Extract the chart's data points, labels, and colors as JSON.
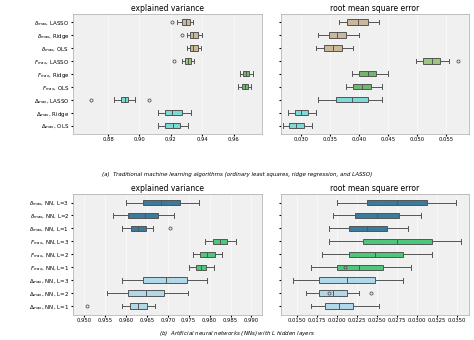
{
  "top_left": {
    "title": "explained variance",
    "xlim": [
      0.858,
      0.978
    ],
    "xticks": [
      0.88,
      0.9,
      0.92,
      0.94,
      0.96
    ],
    "yticks": [
      "$\\delta_{max}$, LASSO",
      "$\\delta_{max}$, Ridge",
      "$\\delta_{max}$, OLS",
      "$F_{max}$, LASSO",
      "$F_{max}$, Ridge",
      "$F_{max}$, OLS",
      "$\\Delta_{max}$, LASSO",
      "$\\Delta_{max}$, Ridge",
      "$\\Delta_{max}$, OLS"
    ],
    "boxes": [
      {
        "med": 0.9295,
        "q1": 0.927,
        "q3": 0.932,
        "whislo": 0.924,
        "whishi": 0.934,
        "fliers": [
          0.921
        ],
        "color": "#c9b99a"
      },
      {
        "med": 0.934,
        "q1": 0.932,
        "q3": 0.937,
        "whislo": 0.93,
        "whishi": 0.94,
        "fliers": [
          0.927
        ],
        "color": "#c9b99a"
      },
      {
        "med": 0.934,
        "q1": 0.932,
        "q3": 0.937,
        "whislo": 0.93,
        "whishi": 0.939,
        "fliers": [],
        "color": "#c9b99a"
      },
      {
        "med": 0.931,
        "q1": 0.929,
        "q3": 0.933,
        "whislo": 0.927,
        "whishi": 0.935,
        "fliers": [
          0.922
        ],
        "color": "#9bc87a"
      },
      {
        "med": 0.968,
        "q1": 0.966,
        "q3": 0.97,
        "whislo": 0.964,
        "whishi": 0.972,
        "fliers": [],
        "color": "#6db86d"
      },
      {
        "med": 0.967,
        "q1": 0.965,
        "q3": 0.969,
        "whislo": 0.963,
        "whishi": 0.971,
        "fliers": [],
        "color": "#6db86d"
      },
      {
        "med": 0.8905,
        "q1": 0.888,
        "q3": 0.893,
        "whislo": 0.884,
        "whishi": 0.897,
        "fliers": [
          0.869,
          0.906
        ],
        "color": "#7adad5"
      },
      {
        "med": 0.921,
        "q1": 0.916,
        "q3": 0.927,
        "whislo": 0.912,
        "whishi": 0.933,
        "fliers": [],
        "color": "#7adad5"
      },
      {
        "med": 0.9215,
        "q1": 0.916,
        "q3": 0.926,
        "whislo": 0.912,
        "whishi": 0.931,
        "fliers": [],
        "color": "#7adad5"
      }
    ]
  },
  "top_right": {
    "title": "root mean square error",
    "xlim": [
      0.0265,
      0.059
    ],
    "xticks": [
      0.03,
      0.035,
      0.04,
      0.045,
      0.05,
      0.055
    ],
    "yticks": [
      "",
      "",
      "",
      "",
      "",
      "",
      "",
      "",
      ""
    ],
    "boxes": [
      {
        "med": 0.0398,
        "q1": 0.038,
        "q3": 0.0415,
        "whislo": 0.0365,
        "whishi": 0.0435,
        "fliers": [],
        "color": "#c9b99a"
      },
      {
        "med": 0.0362,
        "q1": 0.0348,
        "q3": 0.0378,
        "whislo": 0.033,
        "whishi": 0.04,
        "fliers": [],
        "color": "#c9b99a"
      },
      {
        "med": 0.0355,
        "q1": 0.034,
        "q3": 0.037,
        "whislo": 0.0325,
        "whishi": 0.039,
        "fliers": [],
        "color": "#c9b99a"
      },
      {
        "med": 0.0525,
        "q1": 0.051,
        "q3": 0.054,
        "whislo": 0.0498,
        "whishi": 0.0555,
        "fliers": [
          0.057
        ],
        "color": "#9bc87a"
      },
      {
        "med": 0.0415,
        "q1": 0.04,
        "q3": 0.043,
        "whislo": 0.0388,
        "whishi": 0.045,
        "fliers": [],
        "color": "#6db86d"
      },
      {
        "med": 0.0405,
        "q1": 0.039,
        "q3": 0.042,
        "whislo": 0.0378,
        "whishi": 0.044,
        "fliers": [],
        "color": "#6db86d"
      },
      {
        "med": 0.0388,
        "q1": 0.036,
        "q3": 0.0415,
        "whislo": 0.033,
        "whishi": 0.044,
        "fliers": [],
        "color": "#7adad5"
      },
      {
        "med": 0.03,
        "q1": 0.029,
        "q3": 0.0312,
        "whislo": 0.0278,
        "whishi": 0.0325,
        "fliers": [],
        "color": "#7adad5"
      },
      {
        "med": 0.0292,
        "q1": 0.028,
        "q3": 0.0305,
        "whislo": 0.0268,
        "whishi": 0.0318,
        "fliers": [],
        "color": "#7adad5"
      }
    ]
  },
  "bot_left": {
    "title": "explained variance",
    "xlim": [
      0.9475,
      0.9925
    ],
    "xticks": [
      0.95,
      0.955,
      0.96,
      0.965,
      0.97,
      0.975,
      0.98,
      0.985,
      0.99
    ],
    "yticks": [
      "$\\delta_{max}$, NN, L=3",
      "$\\delta_{max}$, NN, L=2",
      "$\\delta_{max}$, NN, L=1",
      "$F_{max}$, NN, L=3",
      "$F_{max}$, NN, L=2",
      "$F_{max}$, NN, L=1",
      "$\\Delta_{max}$, NN, L=3",
      "$\\Delta_{max}$, NN, L=2",
      "$\\Delta_{max}$, NN, L=1"
    ],
    "boxes": [
      {
        "med": 0.9685,
        "q1": 0.964,
        "q3": 0.973,
        "whislo": 0.96,
        "whishi": 0.9775,
        "fliers": [],
        "color": "#3a7a9c"
      },
      {
        "med": 0.9645,
        "q1": 0.9605,
        "q3": 0.9678,
        "whislo": 0.957,
        "whishi": 0.9715,
        "fliers": [],
        "color": "#3a7a9c"
      },
      {
        "med": 0.963,
        "q1": 0.9612,
        "q3": 0.9648,
        "whislo": 0.9592,
        "whishi": 0.9665,
        "fliers": [
          0.9705
        ],
        "color": "#3a7a9c"
      },
      {
        "med": 0.9825,
        "q1": 0.9808,
        "q3": 0.9842,
        "whislo": 0.979,
        "whishi": 0.9862,
        "fliers": [],
        "color": "#4dc87a"
      },
      {
        "med": 0.9795,
        "q1": 0.9778,
        "q3": 0.9812,
        "whislo": 0.976,
        "whishi": 0.983,
        "fliers": [],
        "color": "#4dc87a"
      },
      {
        "med": 0.978,
        "q1": 0.9768,
        "q3": 0.9792,
        "whislo": 0.975,
        "whishi": 0.981,
        "fliers": [],
        "color": "#4dc87a"
      },
      {
        "med": 0.9695,
        "q1": 0.964,
        "q3": 0.9745,
        "whislo": 0.959,
        "whishi": 0.9795,
        "fliers": [],
        "color": "#b0d8e8"
      },
      {
        "med": 0.9648,
        "q1": 0.9605,
        "q3": 0.9692,
        "whislo": 0.9555,
        "whishi": 0.9748,
        "fliers": [],
        "color": "#b0d8e8"
      },
      {
        "med": 0.963,
        "q1": 0.961,
        "q3": 0.965,
        "whislo": 0.959,
        "whishi": 0.967,
        "fliers": [
          0.9508
        ],
        "color": "#b0d8e8"
      }
    ]
  },
  "bot_right": {
    "title": "root mean square error",
    "xlim": [
      0.013,
      0.0365
    ],
    "xticks": [
      0.015,
      0.0175,
      0.02,
      0.0225,
      0.025,
      0.0275,
      0.03,
      0.0325,
      0.035
    ],
    "yticks": [
      "",
      "",
      "",
      "",
      "",
      "",
      "",
      "",
      ""
    ],
    "boxes": [
      {
        "med": 0.0275,
        "q1": 0.0238,
        "q3": 0.0312,
        "whislo": 0.02,
        "whishi": 0.0348,
        "fliers": [],
        "color": "#3a7a9c"
      },
      {
        "med": 0.025,
        "q1": 0.0222,
        "q3": 0.0278,
        "whislo": 0.0195,
        "whishi": 0.0305,
        "fliers": [],
        "color": "#3a7a9c"
      },
      {
        "med": 0.0238,
        "q1": 0.0215,
        "q3": 0.0262,
        "whislo": 0.019,
        "whishi": 0.0288,
        "fliers": [],
        "color": "#3a7a9c"
      },
      {
        "med": 0.0275,
        "q1": 0.0232,
        "q3": 0.0318,
        "whislo": 0.019,
        "whishi": 0.0355,
        "fliers": [],
        "color": "#4dc87a"
      },
      {
        "med": 0.0248,
        "q1": 0.0215,
        "q3": 0.0282,
        "whislo": 0.0182,
        "whishi": 0.0318,
        "fliers": [],
        "color": "#4dc87a"
      },
      {
        "med": 0.0228,
        "q1": 0.02,
        "q3": 0.0258,
        "whislo": 0.0168,
        "whishi": 0.0292,
        "fliers": [
          0.021
        ],
        "color": "#4dc87a"
      },
      {
        "med": 0.0212,
        "q1": 0.0178,
        "q3": 0.0248,
        "whislo": 0.0145,
        "whishi": 0.0282,
        "fliers": [],
        "color": "#b0d8e8"
      },
      {
        "med": 0.0195,
        "q1": 0.0178,
        "q3": 0.0212,
        "whislo": 0.0162,
        "whishi": 0.0228,
        "fliers": [
          0.019,
          0.0242
        ],
        "color": "#b0d8e8"
      },
      {
        "med": 0.0202,
        "q1": 0.0185,
        "q3": 0.022,
        "whislo": 0.0168,
        "whishi": 0.0252,
        "fliers": [],
        "color": "#b0d8e8"
      }
    ]
  },
  "caption_a": "(a)  Traditional machine learning algorithms (ordinary least squares, ridge regression, and LASSO)",
  "caption_b": "(b)  Artificial neural networks (NNs) with $L$ hidden layers",
  "bg_color": "#ffffff",
  "ax_bg_color": "#f0f0f0"
}
